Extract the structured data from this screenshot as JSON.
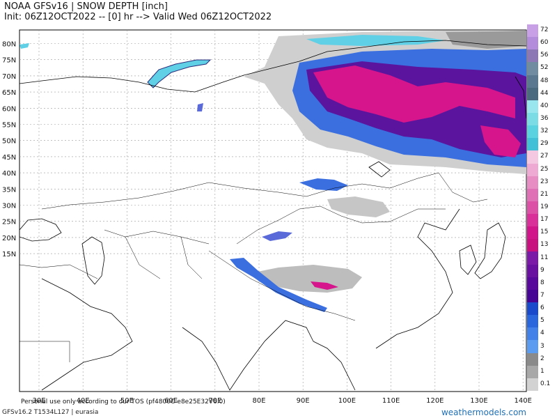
{
  "header": {
    "line1": "NOAA GFSv16 | SNOW DEPTH [inch]",
    "line2": "Init: 06Z12OCT2022 -- [0] hr --> Valid Wed 06Z12OCT2022"
  },
  "map": {
    "lat_labels": [
      "80N",
      "75N",
      "70N",
      "65N",
      "60N",
      "55N",
      "50N",
      "45N",
      "40N",
      "35N",
      "30N",
      "25N",
      "20N",
      "15N"
    ],
    "lon_labels": [
      "30E",
      "40E",
      "50E",
      "60E",
      "70E",
      "80E",
      "90E",
      "100E",
      "110E",
      "120E",
      "130E",
      "140E"
    ],
    "overlay_text": "Personal use only according to our TOS (pf4800C-e8e25E32V6.0)"
  },
  "colorbar": {
    "labels": [
      "72",
      "60",
      "56",
      "52",
      "48",
      "44",
      "40",
      "36",
      "32",
      "29",
      "27",
      "25",
      "23",
      "21",
      "19",
      "17",
      "15",
      "13",
      "11",
      "9",
      "8",
      "7",
      "6",
      "5",
      "4",
      "3",
      "2",
      "1",
      "0.1"
    ],
    "colors": [
      "#c8a0e6",
      "#b48cdc",
      "#8c78b4",
      "#708ca0",
      "#5a7890",
      "#4a6a80",
      "#9ae6ee",
      "#7cdce6",
      "#5ad2e0",
      "#42c0d8",
      "#f4c8e0",
      "#eeaad2",
      "#e88cc4",
      "#e070b6",
      "#dc50a6",
      "#d83098",
      "#d2148a",
      "#c8107e",
      "#7a1aa6",
      "#6a10a0",
      "#58089a",
      "#460494",
      "#1a4acc",
      "#2a66dc",
      "#4282e8",
      "#5c9cf0",
      "#8a8a8a",
      "#a8a8a8",
      "#d2d2d2"
    ]
  },
  "footer": {
    "model_info": "GFSv16.2 T1534L127 | eurasia",
    "site": "weathermodels.com"
  }
}
